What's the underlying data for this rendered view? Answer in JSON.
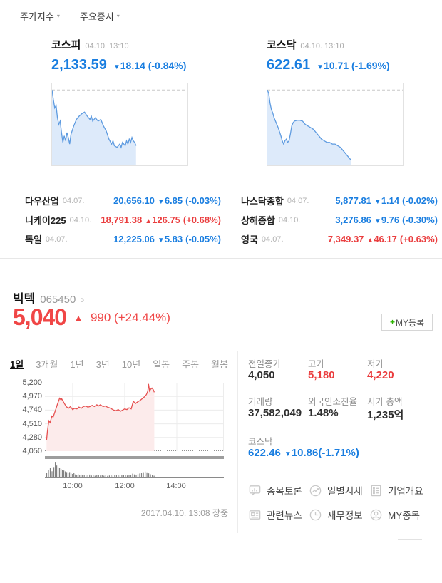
{
  "header": {
    "tabs": [
      {
        "label": "주가지수"
      },
      {
        "label": "주요증시"
      }
    ],
    "caret": "▾"
  },
  "indices": [
    {
      "name": "코스피",
      "datetime": "04.10. 13:10",
      "value": "2,133.59",
      "arrow": "▼",
      "change": "18.14",
      "pct": "(-0.84%)"
    },
    {
      "name": "코스닥",
      "datetime": "04.10. 13:10",
      "value": "622.61",
      "arrow": "▼",
      "change": "10.71",
      "pct": "(-1.69%)"
    }
  ],
  "world": {
    "left": [
      {
        "name": "다우산업",
        "date": "04.07.",
        "value": "20,656.10",
        "arrow": "▼",
        "change": "6.85",
        "pct": "(-0.03%)",
        "dir": "down"
      },
      {
        "name": "니케이225",
        "date": "04.10.",
        "value": "18,791.38",
        "arrow": "▲",
        "change": "126.75",
        "pct": "(+0.68%)",
        "dir": "up"
      },
      {
        "name": "독일",
        "date": "04.07.",
        "value": "12,225.06",
        "arrow": "▼",
        "change": "5.83",
        "pct": "(-0.05%)",
        "dir": "down"
      }
    ],
    "right": [
      {
        "name": "나스닥종합",
        "date": "04.07.",
        "value": "5,877.81",
        "arrow": "▼",
        "change": "1.14",
        "pct": "(-0.02%)",
        "dir": "down"
      },
      {
        "name": "상해종합",
        "date": "04.10.",
        "value": "3,276.86",
        "arrow": "▼",
        "change": "9.76",
        "pct": "(-0.30%)",
        "dir": "down"
      },
      {
        "name": "영국",
        "date": "04.07.",
        "value": "7,349.37",
        "arrow": "▲",
        "change": "46.17",
        "pct": "(+0.63%)",
        "dir": "up"
      }
    ]
  },
  "stock": {
    "name": "빅텍",
    "code": "065450",
    "chevron": "›",
    "price": "5,040",
    "arrow": "▲",
    "change": "990",
    "pct": "(+24.44%)",
    "my_register": {
      "plus": "+",
      "label": "MY등록"
    },
    "range_tabs": [
      {
        "label": "1일",
        "state": "active"
      },
      {
        "label": "3개월",
        "state": "normal"
      },
      {
        "label": "1년",
        "state": "normal"
      },
      {
        "label": "3년",
        "state": "normal"
      },
      {
        "label": "10년",
        "state": "normal"
      },
      {
        "label": "일봉",
        "state": "normal"
      },
      {
        "label": "주봉",
        "state": "normal"
      },
      {
        "label": "월봉",
        "state": "normal"
      }
    ],
    "timestamp": "2017.04.10. 13:08 장중",
    "stats": [
      {
        "label": "전일종가",
        "value": "4,050",
        "color": "black"
      },
      {
        "label": "고가",
        "value": "5,180",
        "color": "red"
      },
      {
        "label": "저가",
        "value": "4,220",
        "color": "red"
      },
      {
        "label": "거래량",
        "value": "37,582,049",
        "color": "black"
      },
      {
        "label": "외국인소진율",
        "value": "1.48%",
        "color": "black"
      },
      {
        "label": "시가 총액",
        "value": "1,235억",
        "color": "black"
      }
    ],
    "kosdaq_ref": {
      "label": "코스닥",
      "value": "622.46",
      "arrow": "▼",
      "change": "10.86",
      "pct": "(-1.71%)"
    },
    "menu": [
      {
        "label": "종목토론",
        "icon": "chart-bubble-icon"
      },
      {
        "label": "일별시세",
        "icon": "trend-circle-icon"
      },
      {
        "label": "기업개요",
        "icon": "document-list-icon"
      },
      {
        "label": "관련뉴스",
        "icon": "newspaper-icon"
      },
      {
        "label": "재무정보",
        "icon": "clock-icon"
      },
      {
        "label": "MY종목",
        "icon": "person-circle-icon"
      }
    ]
  },
  "colors": {
    "down_blue": "#1a7ee0",
    "up_red": "#ea3d3e",
    "price_red": "#f04646",
    "mini_line": "#5e9be0",
    "mini_fill": "#ddeafa",
    "main_line": "#e65050",
    "main_fill": "#fcebeb",
    "plus_green": "#2db400"
  },
  "chart_data": {
    "kospi_mini": {
      "type": "area",
      "title": "코스피 1일 추이",
      "xlim": [
        0,
        100
      ],
      "ylim": [
        0,
        100
      ],
      "ref": 92,
      "points": [
        [
          0,
          92
        ],
        [
          1,
          80
        ],
        [
          2,
          70
        ],
        [
          3,
          73
        ],
        [
          4,
          58
        ],
        [
          5,
          50
        ],
        [
          6,
          54
        ],
        [
          7,
          40
        ],
        [
          8,
          28
        ],
        [
          9,
          36
        ],
        [
          10,
          30
        ],
        [
          11,
          40
        ],
        [
          12,
          34
        ],
        [
          13,
          26
        ],
        [
          14,
          38
        ],
        [
          16,
          48
        ],
        [
          18,
          56
        ],
        [
          20,
          60
        ],
        [
          22,
          63
        ],
        [
          24,
          65
        ],
        [
          26,
          60
        ],
        [
          28,
          56
        ],
        [
          29,
          60
        ],
        [
          30,
          54
        ],
        [
          32,
          58
        ],
        [
          34,
          54
        ],
        [
          36,
          56
        ],
        [
          38,
          48
        ],
        [
          40,
          42
        ],
        [
          42,
          32
        ],
        [
          44,
          26
        ],
        [
          45,
          30
        ],
        [
          46,
          24
        ],
        [
          48,
          22
        ],
        [
          50,
          26
        ],
        [
          51,
          22
        ],
        [
          52,
          28
        ],
        [
          54,
          24
        ],
        [
          55,
          30
        ],
        [
          56,
          26
        ],
        [
          57,
          32
        ],
        [
          58,
          28
        ],
        [
          59,
          34
        ],
        [
          60,
          30
        ],
        [
          61,
          28
        ],
        [
          62,
          24
        ]
      ]
    },
    "kosdaq_mini": {
      "type": "area",
      "title": "코스닥 1일 추이",
      "xlim": [
        0,
        100
      ],
      "ylim": [
        0,
        100
      ],
      "ref": 92,
      "points": [
        [
          0,
          92
        ],
        [
          1,
          88
        ],
        [
          2,
          76
        ],
        [
          3,
          68
        ],
        [
          4,
          64
        ],
        [
          5,
          58
        ],
        [
          6,
          54
        ],
        [
          8,
          46
        ],
        [
          10,
          36
        ],
        [
          11,
          30
        ],
        [
          12,
          26
        ],
        [
          13,
          30
        ],
        [
          14,
          32
        ],
        [
          15,
          28
        ],
        [
          16,
          30
        ],
        [
          17,
          38
        ],
        [
          18,
          48
        ],
        [
          19,
          52
        ],
        [
          20,
          54
        ],
        [
          22,
          55
        ],
        [
          24,
          55
        ],
        [
          26,
          54
        ],
        [
          28,
          50
        ],
        [
          30,
          48
        ],
        [
          32,
          46
        ],
        [
          34,
          44
        ],
        [
          36,
          40
        ],
        [
          38,
          36
        ],
        [
          40,
          32
        ],
        [
          42,
          30
        ],
        [
          44,
          28
        ],
        [
          46,
          28
        ],
        [
          48,
          26
        ],
        [
          50,
          26
        ],
        [
          52,
          24
        ],
        [
          54,
          22
        ],
        [
          56,
          18
        ],
        [
          58,
          14
        ],
        [
          60,
          10
        ],
        [
          61,
          8
        ],
        [
          62,
          6
        ]
      ]
    },
    "stock_price": {
      "type": "area",
      "title": "빅텍 1일 주가",
      "xlim": [
        0,
        100
      ],
      "ylim": [
        4050,
        5200
      ],
      "ylabels": [
        "5,200",
        "4,970",
        "4,740",
        "4,510",
        "4,280",
        "4,050"
      ],
      "yticks": [
        5200,
        4970,
        4740,
        4510,
        4280
      ],
      "ref": 4050,
      "grid_right": true,
      "xticks": [
        {
          "label": "10:00",
          "x": 15.5
        },
        {
          "label": "12:00",
          "x": 44.6
        },
        {
          "label": "14:00",
          "x": 73.7
        }
      ],
      "points": [
        [
          0.9,
          4230
        ],
        [
          1.4,
          4380
        ],
        [
          2.2,
          4560
        ],
        [
          2.9,
          4530
        ],
        [
          3.9,
          4640
        ],
        [
          4.6,
          4620
        ],
        [
          5.8,
          4730
        ],
        [
          7,
          4840
        ],
        [
          8.2,
          4940
        ],
        [
          9,
          4910
        ],
        [
          9.4,
          4930
        ],
        [
          10.7,
          4860
        ],
        [
          11.9,
          4800
        ],
        [
          13.1,
          4770
        ],
        [
          14.3,
          4800
        ],
        [
          15.5,
          4750
        ],
        [
          16.5,
          4770
        ],
        [
          17.9,
          4760
        ],
        [
          19,
          4790
        ],
        [
          20.3,
          4770
        ],
        [
          21.5,
          4800
        ],
        [
          22.8,
          4810
        ],
        [
          24,
          4790
        ],
        [
          25.2,
          4800
        ],
        [
          26.4,
          4820
        ],
        [
          27.6,
          4800
        ],
        [
          29,
          4830
        ],
        [
          30,
          4810
        ],
        [
          31,
          4830
        ],
        [
          32.5,
          4800
        ],
        [
          33.7,
          4810
        ],
        [
          34.9,
          4790
        ],
        [
          36,
          4780
        ],
        [
          37.3,
          4760
        ],
        [
          38.5,
          4740
        ],
        [
          39.7,
          4730
        ],
        [
          41,
          4750
        ],
        [
          42.2,
          4720
        ],
        [
          43.4,
          4740
        ],
        [
          44.6,
          4760
        ],
        [
          45.8,
          4750
        ],
        [
          47,
          4780
        ],
        [
          48.2,
          4760
        ],
        [
          49.4,
          4890
        ],
        [
          50.6,
          4850
        ],
        [
          51.9,
          4880
        ],
        [
          53.1,
          4900
        ],
        [
          54.3,
          4930
        ],
        [
          55.5,
          4960
        ],
        [
          56.7,
          5000
        ],
        [
          57.5,
          5060
        ],
        [
          57.9,
          5180
        ],
        [
          58.5,
          5060
        ],
        [
          59.1,
          5090
        ],
        [
          59.8,
          5110
        ],
        [
          60.6,
          5080
        ],
        [
          61.1,
          5040
        ]
      ]
    },
    "stock_volume": {
      "type": "bar",
      "title": "빅텍 1일 거래량",
      "xlim": [
        0,
        100
      ],
      "ylim": [
        0,
        100
      ],
      "bars": [
        [
          1,
          25
        ],
        [
          2,
          45
        ],
        [
          3,
          58
        ],
        [
          4,
          35
        ],
        [
          5,
          62
        ],
        [
          5.8,
          95
        ],
        [
          6.6,
          72
        ],
        [
          7.4,
          60
        ],
        [
          8.2,
          55
        ],
        [
          9,
          50
        ],
        [
          9.8,
          44
        ],
        [
          10.6,
          40
        ],
        [
          11.4,
          34
        ],
        [
          12.2,
          30
        ],
        [
          13,
          26
        ],
        [
          13.8,
          30
        ],
        [
          14.6,
          22
        ],
        [
          15.4,
          18
        ],
        [
          16.2,
          24
        ],
        [
          17,
          15
        ],
        [
          17.8,
          12
        ],
        [
          18.6,
          16
        ],
        [
          19.4,
          10
        ],
        [
          20.2,
          14
        ],
        [
          21,
          9
        ],
        [
          22,
          12
        ],
        [
          23,
          8
        ],
        [
          24,
          10
        ],
        [
          25,
          14
        ],
        [
          26,
          8
        ],
        [
          27,
          10
        ],
        [
          28,
          7
        ],
        [
          29,
          9
        ],
        [
          30,
          12
        ],
        [
          31,
          8
        ],
        [
          32,
          10
        ],
        [
          33,
          7
        ],
        [
          34,
          9
        ],
        [
          35,
          6
        ],
        [
          36,
          8
        ],
        [
          37,
          10
        ],
        [
          38,
          7
        ],
        [
          39,
          9
        ],
        [
          40,
          12
        ],
        [
          41,
          10
        ],
        [
          42,
          8
        ],
        [
          43,
          12
        ],
        [
          44,
          9
        ],
        [
          45,
          11
        ],
        [
          46,
          8
        ],
        [
          47,
          10
        ],
        [
          48,
          9
        ],
        [
          49,
          20
        ],
        [
          50,
          15
        ],
        [
          51,
          13
        ],
        [
          52,
          17
        ],
        [
          53,
          21
        ],
        [
          54,
          25
        ],
        [
          55,
          29
        ],
        [
          56,
          33
        ],
        [
          57,
          28
        ],
        [
          58,
          22
        ],
        [
          59,
          16
        ],
        [
          60,
          11
        ],
        [
          61,
          7
        ]
      ]
    }
  }
}
